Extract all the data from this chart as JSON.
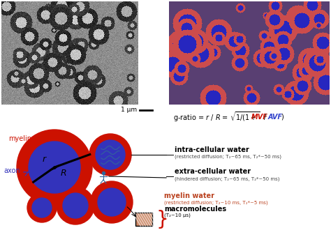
{
  "bg_color": "#ffffff",
  "myelin_color": "#cc1100",
  "axon_color": "#3333bb",
  "myelin_label_color": "#cc1100",
  "axon_label_color": "#3333bb",
  "gratio_mvf_color": "#cc1100",
  "gratio_avf_color": "#3344cc",
  "myelin_water_color": "#bb4422",
  "brace_color": "#cc1100",
  "intra_title": "intra-cellular water",
  "intra_sub": "(restricted diffusion; T₂~65 ms, T₂*~50 ms)",
  "extra_title": "extra-cellular water",
  "extra_sub": "(hindered diffusion; T₂~65 ms, T₂*~50 ms)",
  "myelin_water_title": "myelin water",
  "myelin_water_sub": "(restricted diffusion; T₂~10 ms, T₂*~5 ms)",
  "macro_title": "macromolecules",
  "macro_sub": "(T₂~10 μs)",
  "scale_bar_text": "1 μm",
  "myelin_label": "myelin",
  "axon_label": "axon",
  "em_noise_seed": 42,
  "colorimg_seed": 7
}
